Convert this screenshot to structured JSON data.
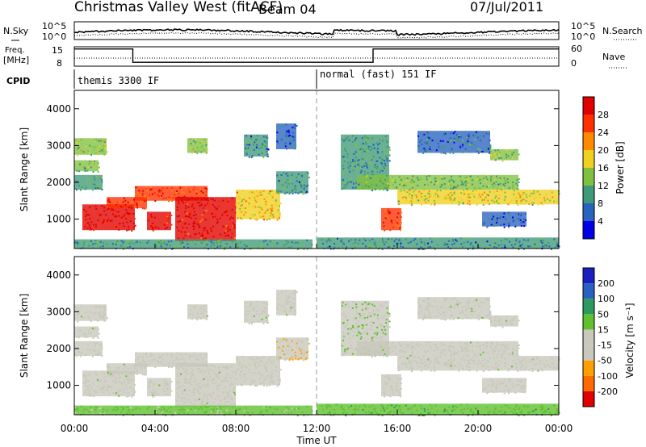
{
  "header": {
    "title": "Christmas Valley West (fitACF)",
    "beam": "Beam 04",
    "date": "07/Jul/2011"
  },
  "nsky_panel": {
    "left_label": "N.Sky",
    "right_label": "N.Search",
    "left_ticks": [
      "10^5",
      "10^0"
    ],
    "right_ticks": [
      "10^5",
      "10^0"
    ]
  },
  "freq_panel": {
    "left_label_1": "Freq.",
    "left_label_2": "[MHz]",
    "right_label": "Nave",
    "left_ticks": [
      "15",
      "8"
    ],
    "right_ticks": [
      "60",
      "0"
    ]
  },
  "cpid": {
    "label": "CPID",
    "mode_1": "themis 3300 IF",
    "mode_2": "normal (fast) 151 IF"
  },
  "power_panel": {
    "ylabel": "Slant Range [km]",
    "cbar_label": "Power [dB]",
    "cbar_ticks": [
      "28",
      "24",
      "20",
      "16",
      "12",
      "8",
      "4"
    ]
  },
  "velocity_panel": {
    "ylabel": "Slant Range [km]",
    "cbar_label": "Velocity [m s⁻¹]",
    "cbar_ticks": [
      "200",
      "100",
      "50",
      "15",
      "-15",
      "-50",
      "-100",
      "-200"
    ]
  },
  "xaxis": {
    "label": "Time UT",
    "ticks": [
      "00:00",
      "04:00",
      "08:00",
      "12:00",
      "16:00",
      "20:00",
      "00:00"
    ]
  },
  "chart_data": {
    "type": "heatmap",
    "x_range_hours": [
      0,
      24
    ],
    "y_range_km": [
      200,
      4500
    ],
    "y_ticks_km": [
      1000,
      2000,
      3000,
      4000
    ],
    "mode_change_hour": 12,
    "freq_mhz": [
      {
        "from": 0.0,
        "to": 2.9,
        "value": 14.2
      },
      {
        "from": 2.9,
        "to": 14.8,
        "value": 9.4
      },
      {
        "from": 14.8,
        "to": 24.0,
        "value": 14.2
      }
    ],
    "power_colorscale": {
      "range_db": [
        0,
        30
      ],
      "colors": [
        "#0000e6",
        "#2a62c0",
        "#3f9a78",
        "#80c040",
        "#f0d020",
        "#ff8a00",
        "#ff3000",
        "#e00000"
      ]
    },
    "velocity_colorscale": {
      "range_ms": [
        -250,
        250
      ],
      "colors": [
        "#e00000",
        "#ff6a00",
        "#ffa000",
        "#c8c8bc",
        "#c8c8bc",
        "#60c030",
        "#2a9a60",
        "#2a60c0",
        "#1a20c0"
      ]
    },
    "regions": [
      {
        "t0": 0.0,
        "t1": 1.6,
        "r0": 2750,
        "r1": 3200,
        "power": 14,
        "velocity": 0
      },
      {
        "t0": 0.0,
        "t1": 1.2,
        "r0": 2300,
        "r1": 2600,
        "power": 12,
        "velocity": 0
      },
      {
        "t0": 0.0,
        "t1": 1.4,
        "r0": 1800,
        "r1": 2200,
        "power": 10,
        "velocity": -10
      },
      {
        "t0": 0.4,
        "t1": 3.0,
        "r0": 700,
        "r1": 1400,
        "power": 28,
        "velocity": 0
      },
      {
        "t0": 1.6,
        "t1": 3.6,
        "r0": 1300,
        "r1": 1600,
        "power": 26,
        "velocity": 5
      },
      {
        "t0": 3.0,
        "t1": 6.6,
        "r0": 1500,
        "r1": 1900,
        "power": 24,
        "velocity": -5
      },
      {
        "t0": 3.6,
        "t1": 4.8,
        "r0": 700,
        "r1": 1200,
        "power": 27,
        "velocity": 0
      },
      {
        "t0": 5.0,
        "t1": 8.0,
        "r0": 400,
        "r1": 1600,
        "power": 27,
        "velocity": 0
      },
      {
        "t0": 8.0,
        "t1": 10.2,
        "r0": 1000,
        "r1": 1800,
        "power": 18,
        "velocity": -40
      },
      {
        "t0": 10.0,
        "t1": 11.6,
        "r0": 1700,
        "r1": 2300,
        "power": 8,
        "velocity": -80
      },
      {
        "t0": 8.4,
        "t1": 9.6,
        "r0": 2700,
        "r1": 3300,
        "power": 8,
        "velocity": 0
      },
      {
        "t0": 10.0,
        "t1": 11.0,
        "r0": 2900,
        "r1": 3600,
        "power": 6,
        "velocity": 0
      },
      {
        "t0": 5.6,
        "t1": 6.6,
        "r0": 2800,
        "r1": 3200,
        "power": 14,
        "velocity": 0
      },
      {
        "t0": 0.0,
        "t1": 11.8,
        "r0": 200,
        "r1": 450,
        "power": 10,
        "velocity": 40
      },
      {
        "t0": 13.2,
        "t1": 15.6,
        "r0": 1800,
        "r1": 3300,
        "power": 9,
        "velocity": 20
      },
      {
        "t0": 14.0,
        "t1": 22.0,
        "r0": 1800,
        "r1": 2200,
        "power": 12,
        "velocity": 0
      },
      {
        "t0": 16.0,
        "t1": 24.0,
        "r0": 1400,
        "r1": 1800,
        "power": 16,
        "velocity": 0
      },
      {
        "t0": 15.2,
        "t1": 16.2,
        "r0": 700,
        "r1": 1300,
        "power": 24,
        "velocity": 0
      },
      {
        "t0": 17.0,
        "t1": 20.6,
        "r0": 2800,
        "r1": 3400,
        "power": 7,
        "velocity": 0
      },
      {
        "t0": 20.6,
        "t1": 22.0,
        "r0": 2600,
        "r1": 2900,
        "power": 14,
        "velocity": 0
      },
      {
        "t0": 20.2,
        "t1": 22.4,
        "r0": 800,
        "r1": 1200,
        "power": 6,
        "velocity": 0
      },
      {
        "t0": 12.0,
        "t1": 24.0,
        "r0": 200,
        "r1": 500,
        "power": 8,
        "velocity": 60
      }
    ]
  }
}
